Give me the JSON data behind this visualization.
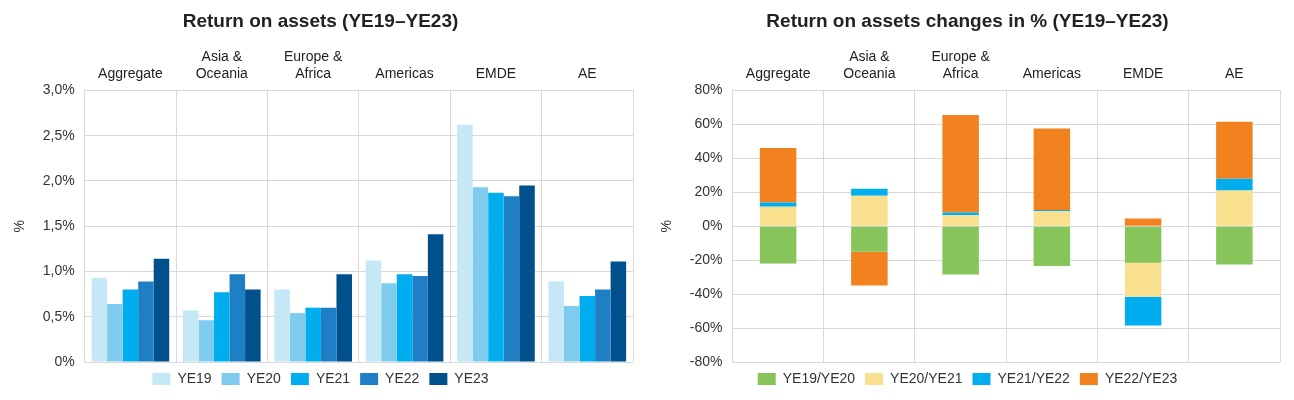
{
  "chart_data": [
    {
      "type": "bar",
      "title": "Return on assets (YE19–YE23)",
      "ylabel": "%",
      "categories": [
        "Aggregate",
        "Asia & Oceania",
        "Europe & Africa",
        "Americas",
        "EMDE",
        "AE"
      ],
      "series": [
        {
          "name": "YE19",
          "color": "#c5e8f7",
          "values": [
            0.93,
            0.57,
            0.8,
            1.12,
            2.62,
            0.89
          ]
        },
        {
          "name": "YE20",
          "color": "#7fcbee",
          "values": [
            0.64,
            0.46,
            0.54,
            0.87,
            1.93,
            0.62
          ]
        },
        {
          "name": "YE21",
          "color": "#00aeef",
          "values": [
            0.8,
            0.77,
            0.6,
            0.97,
            1.87,
            0.73
          ]
        },
        {
          "name": "YE22",
          "color": "#1f7fc4",
          "values": [
            0.89,
            0.97,
            0.6,
            0.95,
            1.83,
            0.8
          ]
        },
        {
          "name": "YE23",
          "color": "#00508c",
          "values": [
            1.14,
            0.8,
            0.97,
            1.41,
            1.95,
            1.11
          ]
        }
      ],
      "ylim": [
        0,
        3
      ],
      "yticks": [
        {
          "value": 0,
          "label": "0%"
        },
        {
          "value": 0.5,
          "label": "0,5%"
        },
        {
          "value": 1,
          "label": "1,0%"
        },
        {
          "value": 1.5,
          "label": "1,5%"
        },
        {
          "value": 2,
          "label": "2,0%"
        },
        {
          "value": 2.5,
          "label": "2,5%"
        },
        {
          "value": 3,
          "label": "3,0%"
        }
      ],
      "grid": true,
      "legend": "bottom"
    },
    {
      "type": "bar",
      "title": "Return on assets changes in % (YE19–YE23)",
      "ylabel": "%",
      "categories": [
        "Aggregate",
        "Asia & Oceania",
        "Europe & Africa",
        "Americas",
        "EMDE",
        "AE"
      ],
      "stacked": true,
      "series": [
        {
          "name": "YE19/YE20",
          "color": "#87c55a",
          "values": [
            -22,
            -15,
            -28.5,
            -23.5,
            -21.5,
            -22.5
          ]
        },
        {
          "name": "YE20/YE21",
          "color": "#f9e08f",
          "values": [
            11.5,
            18,
            6.5,
            9,
            -20,
            21
          ]
        },
        {
          "name": "YE21/YE22",
          "color": "#00aeef",
          "values": [
            2.5,
            4,
            1.5,
            0.5,
            -17,
            7
          ]
        },
        {
          "name": "YE22/YE23",
          "color": "#f28220",
          "values": [
            32,
            -20,
            57.5,
            48,
            4.5,
            33.5
          ]
        }
      ],
      "ylim": [
        -80,
        80
      ],
      "yticks": [
        {
          "value": -80,
          "label": "-80%"
        },
        {
          "value": -60,
          "label": "-60%"
        },
        {
          "value": -40,
          "label": "-40%"
        },
        {
          "value": -20,
          "label": "-20%"
        },
        {
          "value": 0,
          "label": "0%"
        },
        {
          "value": 20,
          "label": "20%"
        },
        {
          "value": 40,
          "label": "40%"
        },
        {
          "value": 60,
          "label": "60%"
        },
        {
          "value": 80,
          "label": "80%"
        }
      ],
      "grid": true,
      "legend": "bottom"
    }
  ]
}
